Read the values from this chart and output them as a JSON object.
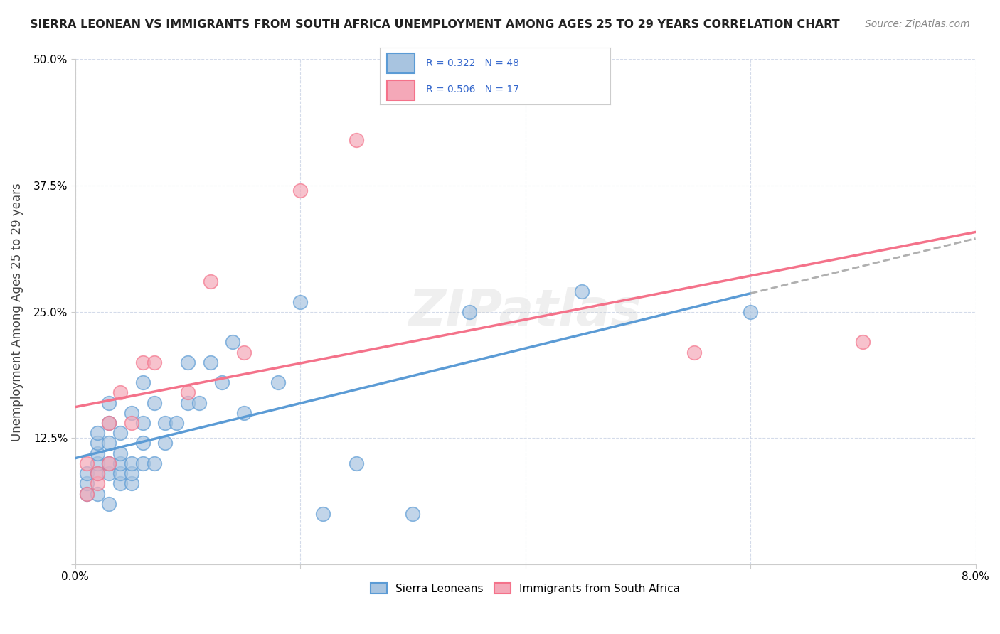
{
  "title": "SIERRA LEONEAN VS IMMIGRANTS FROM SOUTH AFRICA UNEMPLOYMENT AMONG AGES 25 TO 29 YEARS CORRELATION CHART",
  "source": "Source: ZipAtlas.com",
  "ylabel": "Unemployment Among Ages 25 to 29 years",
  "xlim": [
    0.0,
    0.08
  ],
  "ylim": [
    0.0,
    0.5
  ],
  "x_ticks": [
    0.0,
    0.02,
    0.04,
    0.06,
    0.08
  ],
  "x_tick_labels": [
    "0.0%",
    "",
    "",
    "",
    "8.0%"
  ],
  "y_ticks": [
    0.0,
    0.125,
    0.25,
    0.375,
    0.5
  ],
  "y_tick_labels": [
    "",
    "12.5%",
    "25.0%",
    "37.5%",
    "50.0%"
  ],
  "sierra_leone_R": 0.322,
  "sierra_leone_N": 48,
  "south_africa_R": 0.506,
  "south_africa_N": 17,
  "sierra_leone_color": "#a8c4e0",
  "south_africa_color": "#f4a8b8",
  "sierra_leone_line_color": "#5b9bd5",
  "south_africa_line_color": "#f4728a",
  "trend_dash_color": "#b0b0b0",
  "background_color": "#ffffff",
  "grid_color": "#d0d8e8",
  "watermark": "ZIPatlas",
  "sierra_leone_x": [
    0.001,
    0.001,
    0.001,
    0.002,
    0.002,
    0.002,
    0.002,
    0.002,
    0.002,
    0.003,
    0.003,
    0.003,
    0.003,
    0.003,
    0.003,
    0.004,
    0.004,
    0.004,
    0.004,
    0.004,
    0.005,
    0.005,
    0.005,
    0.005,
    0.006,
    0.006,
    0.006,
    0.006,
    0.007,
    0.007,
    0.008,
    0.008,
    0.009,
    0.01,
    0.01,
    0.011,
    0.012,
    0.013,
    0.014,
    0.015,
    0.018,
    0.02,
    0.022,
    0.025,
    0.03,
    0.035,
    0.045,
    0.06
  ],
  "sierra_leone_y": [
    0.07,
    0.08,
    0.09,
    0.07,
    0.09,
    0.1,
    0.11,
    0.12,
    0.13,
    0.06,
    0.09,
    0.1,
    0.12,
    0.14,
    0.16,
    0.08,
    0.09,
    0.1,
    0.11,
    0.13,
    0.08,
    0.09,
    0.1,
    0.15,
    0.1,
    0.12,
    0.14,
    0.18,
    0.1,
    0.16,
    0.12,
    0.14,
    0.14,
    0.16,
    0.2,
    0.16,
    0.2,
    0.18,
    0.22,
    0.15,
    0.18,
    0.26,
    0.05,
    0.1,
    0.05,
    0.25,
    0.27,
    0.25
  ],
  "south_africa_x": [
    0.001,
    0.001,
    0.002,
    0.002,
    0.003,
    0.003,
    0.004,
    0.005,
    0.006,
    0.007,
    0.01,
    0.012,
    0.015,
    0.02,
    0.025,
    0.055,
    0.07
  ],
  "south_africa_y": [
    0.07,
    0.1,
    0.08,
    0.09,
    0.1,
    0.14,
    0.17,
    0.14,
    0.2,
    0.2,
    0.17,
    0.28,
    0.21,
    0.37,
    0.42,
    0.21,
    0.22
  ]
}
